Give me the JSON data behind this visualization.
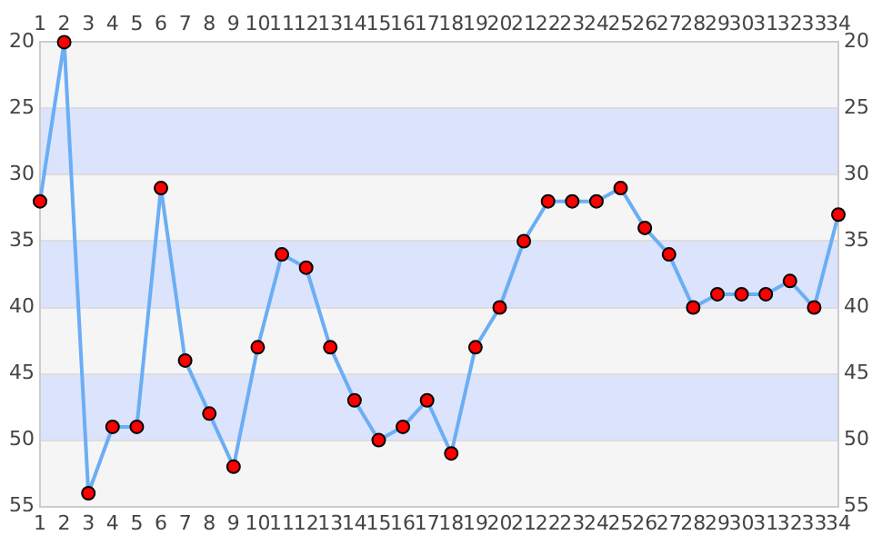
{
  "chart_data": {
    "type": "line",
    "x": [
      1,
      2,
      3,
      4,
      5,
      6,
      7,
      8,
      9,
      10,
      11,
      12,
      13,
      14,
      15,
      16,
      17,
      18,
      19,
      20,
      21,
      22,
      23,
      24,
      25,
      26,
      27,
      28,
      29,
      30,
      31,
      32,
      33,
      34
    ],
    "series": [
      {
        "color": "#6aaef5",
        "values": [
          32,
          20,
          54,
          49,
          49,
          31,
          44,
          48,
          52,
          43,
          36,
          37,
          43,
          47,
          50,
          49,
          47,
          51,
          43,
          40,
          35,
          32,
          32,
          32,
          31,
          34,
          36,
          40,
          39,
          39,
          39,
          38,
          40,
          33
        ]
      }
    ],
    "marker": "circle",
    "line_style": "solid",
    "grid": "y",
    "legend": false,
    "xlim": [
      1,
      34
    ],
    "xticks": [
      1,
      2,
      3,
      4,
      5,
      6,
      7,
      8,
      9,
      10,
      11,
      12,
      13,
      14,
      15,
      16,
      17,
      18,
      19,
      20,
      21,
      22,
      23,
      24,
      25,
      26,
      27,
      28,
      29,
      30,
      31,
      32,
      33,
      34
    ],
    "x2lim": [
      1,
      34
    ],
    "x2ticks": [
      1,
      2,
      3,
      4,
      5,
      6,
      7,
      8,
      9,
      10,
      11,
      12,
      13,
      14,
      15,
      16,
      17,
      18,
      19,
      20,
      21,
      22,
      23,
      24,
      25,
      26,
      27,
      28,
      29,
      30,
      31,
      32,
      33,
      34
    ],
    "ylim": [
      55,
      20
    ],
    "yticks": [
      20,
      25,
      30,
      35,
      40,
      45,
      50,
      55
    ],
    "y2lim": [
      55,
      20
    ],
    "y2ticks": [
      20,
      25,
      30,
      35,
      40,
      45,
      50,
      55
    ],
    "bands": [
      {
        "axis": "y",
        "from": 20,
        "to": 25,
        "color": "#f5f5f5"
      },
      {
        "axis": "y",
        "from": 25,
        "to": 30,
        "color": "#dce3fc"
      },
      {
        "axis": "y",
        "from": 30,
        "to": 35,
        "color": "#f5f5f5"
      },
      {
        "axis": "y",
        "from": 35,
        "to": 40,
        "color": "#dce3fc"
      },
      {
        "axis": "y",
        "from": 40,
        "to": 45,
        "color": "#f5f5f5"
      },
      {
        "axis": "y",
        "from": 45,
        "to": 50,
        "color": "#dce3fc"
      },
      {
        "axis": "y",
        "from": 50,
        "to": 55,
        "color": "#f5f5f5"
      }
    ]
  }
}
